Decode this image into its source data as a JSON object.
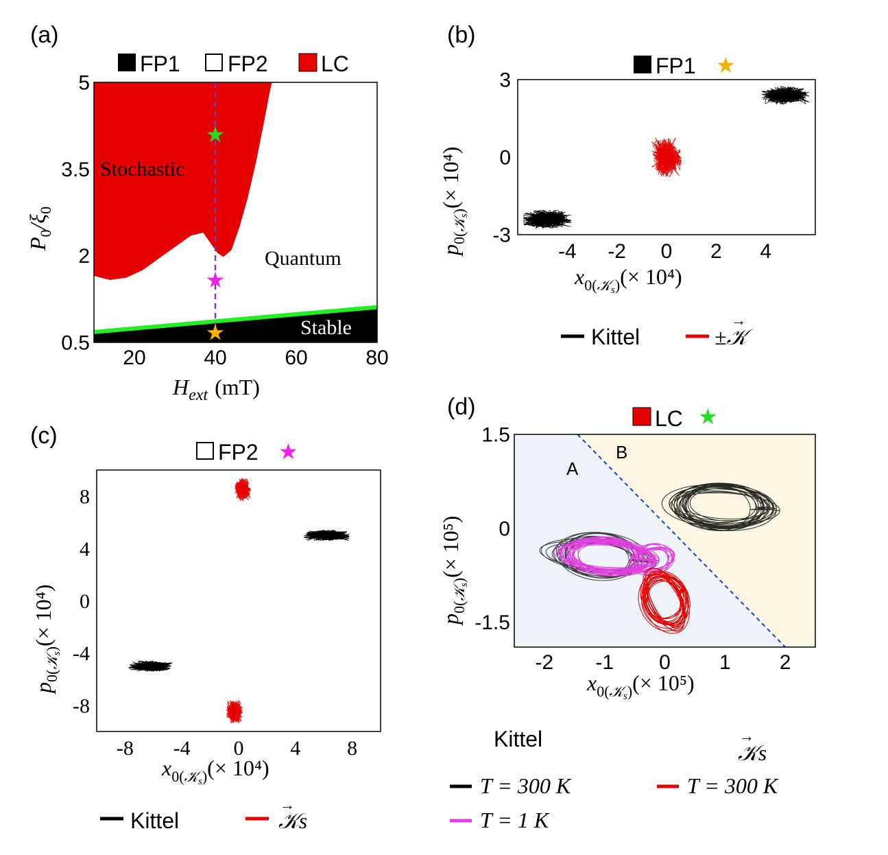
{
  "figure": {
    "colors": {
      "fp1": "#000000",
      "lc": "#e60000",
      "stable_line": "#22ee22",
      "green_star": "#22dd22",
      "magenta_star": "#ee22ee",
      "orange_star": "#f5b000",
      "magenta": "#e040e0",
      "dashed": "#7a3ab0",
      "region_a": "#eef3fa",
      "region_b": "#fbf5e3",
      "divider": "#1a3fd0"
    }
  },
  "chart_data": [
    {
      "id": "a",
      "panel_label": "(a)",
      "type": "area",
      "title": "",
      "legend": [
        {
          "label": "FP1",
          "color": "#000000",
          "filled": true
        },
        {
          "label": "FP2",
          "color": "#ffffff",
          "filled": false
        },
        {
          "label": "LC",
          "color": "#e60000",
          "filled": true
        }
      ],
      "xlabel_main": "H",
      "xlabel_sub": "ext",
      "xlabel_unit": "(mT)",
      "ylabel_main": "P",
      "ylabel_sub": "0",
      "ylabel_slash": "/ξ",
      "ylabel_sub2": "0",
      "xlim": [
        10,
        80
      ],
      "ylim": [
        0.5,
        5
      ],
      "xticks": [
        "20",
        "40",
        "60",
        "80"
      ],
      "xtick_values": [
        20,
        40,
        60,
        80
      ],
      "yticks": [
        "0.5",
        "2",
        "3.5",
        "5"
      ],
      "ytick_values": [
        0.5,
        2,
        3.5,
        5
      ],
      "region_labels": {
        "stochastic": "Stochastic",
        "quantum": "Quantum",
        "stable": "Stable"
      },
      "lc_boundary": [
        [
          10,
          1.65
        ],
        [
          14,
          1.58
        ],
        [
          18,
          1.62
        ],
        [
          22,
          1.75
        ],
        [
          26,
          1.95
        ],
        [
          30,
          2.15
        ],
        [
          34,
          2.35
        ],
        [
          37,
          2.4
        ],
        [
          39,
          2.2
        ],
        [
          40.5,
          2.05
        ],
        [
          42,
          1.98
        ],
        [
          44,
          2.1
        ],
        [
          46,
          2.5
        ],
        [
          48,
          3.0
        ],
        [
          50,
          3.6
        ],
        [
          52,
          4.3
        ],
        [
          53.5,
          4.85
        ],
        [
          54,
          5
        ]
      ],
      "stable_line": [
        [
          10,
          0.68
        ],
        [
          80,
          1.11
        ]
      ],
      "dashed_x": 40,
      "stars": [
        {
          "x": 40,
          "y": 4.1,
          "color": "#22dd22"
        },
        {
          "x": 40,
          "y": 1.58,
          "color": "#ee22ee"
        },
        {
          "x": 40,
          "y": 0.67,
          "color": "#f5b000"
        }
      ]
    },
    {
      "id": "b",
      "panel_label": "(b)",
      "type": "scatter",
      "legend_top": [
        {
          "label": "FP1",
          "color": "#000000",
          "star": "#f5b000"
        }
      ],
      "xlabel_main": "x",
      "xlabel_sub": "0(",
      "xlabel_ks": "𝒦",
      "xlabel_ks_sub": "s",
      "xlabel_tail": ")",
      "xlabel_unit": "(× 10⁴)",
      "ylabel_main": "p",
      "ylabel_sub": "0(",
      "ylabel_ks": "𝒦",
      "ylabel_ks_sub": "s",
      "ylabel_tail": ")",
      "ylabel_unit": "(× 10⁴)",
      "xlim": [
        -6,
        6
      ],
      "ylim": [
        -3,
        3
      ],
      "xticks": [
        "-4",
        "-2",
        "0",
        "2",
        "4"
      ],
      "xtick_values": [
        -4,
        -2,
        0,
        2,
        4
      ],
      "yticks": [
        "-3",
        "0",
        "3"
      ],
      "ytick_values": [
        -3,
        0,
        3
      ],
      "series": [
        {
          "name": "Kittel",
          "color": "#000000",
          "clusters": [
            [
              4.8,
              2.4,
              0.95,
              0.35
            ],
            [
              -4.8,
              -2.4,
              0.95,
              0.35
            ]
          ]
        },
        {
          "name": "±𝒦",
          "color": "#e60000",
          "clusters": [
            [
              0.0,
              0.0,
              0.6,
              0.75
            ]
          ]
        }
      ],
      "legend_bottom": [
        {
          "label": "Kittel",
          "color": "#000000"
        },
        {
          "label": "±𝒦",
          "color": "#e60000"
        }
      ]
    },
    {
      "id": "c",
      "panel_label": "(c)",
      "type": "scatter",
      "legend_top": [
        {
          "label": "FP2",
          "color": "#ffffff",
          "star": "#ee22ee"
        }
      ],
      "xlabel_main": "x",
      "xlabel_sub": "0(",
      "xlabel_ks": "𝒦",
      "xlabel_ks_sub": "s",
      "xlabel_tail": ")",
      "xlabel_unit": "(× 10⁴)",
      "ylabel_main": "p",
      "ylabel_sub": "0(",
      "ylabel_ks": "𝒦",
      "ylabel_ks_sub": "s",
      "ylabel_tail": ")",
      "ylabel_unit": "(× 10⁴)",
      "xlim": [
        -10,
        10
      ],
      "ylim": [
        -10,
        10
      ],
      "xticks": [
        "-8",
        "-4",
        "0",
        "4",
        "8"
      ],
      "xtick_values": [
        -8,
        -4,
        0,
        4,
        8
      ],
      "yticks": [
        "-8",
        "-4",
        "0",
        "4",
        "8"
      ],
      "ytick_values": [
        -8,
        -4,
        0,
        4,
        8
      ],
      "series": [
        {
          "name": "Kittel",
          "color": "#000000",
          "clusters": [
            [
              6.2,
              5.0,
              1.6,
              0.4
            ],
            [
              -6.2,
              -5.0,
              1.6,
              0.4
            ]
          ]
        },
        {
          "name": "𝒦s",
          "color": "#e60000",
          "clusters": [
            [
              0.3,
              8.5,
              0.55,
              0.85
            ],
            [
              -0.3,
              -8.5,
              0.55,
              0.85
            ]
          ]
        }
      ],
      "legend_bottom": [
        {
          "label": "Kittel",
          "color": "#000000"
        },
        {
          "label": "𝒦s",
          "color": "#e60000"
        }
      ]
    },
    {
      "id": "d",
      "panel_label": "(d)",
      "type": "line",
      "legend_top": [
        {
          "label": "LC",
          "color": "#e60000",
          "star": "#22dd22"
        }
      ],
      "xlabel_main": "x",
      "xlabel_sub": "0(",
      "xlabel_ks": "𝒦",
      "xlabel_ks_sub": "s",
      "xlabel_tail": ")",
      "xlabel_unit": "(× 10⁵)",
      "ylabel_main": "p",
      "ylabel_sub": "0(",
      "ylabel_ks": "𝒦",
      "ylabel_ks_sub": "s",
      "ylabel_tail": ")",
      "ylabel_unit": "(× 10⁵)",
      "xlim": [
        -2.5,
        2.5
      ],
      "ylim": [
        -1.9,
        1.5
      ],
      "xticks": [
        "-2",
        "-1",
        "0",
        "1",
        "2"
      ],
      "xtick_values": [
        -2,
        -1,
        0,
        1,
        2
      ],
      "yticks": [
        "1.5",
        "0",
        "-1.5"
      ],
      "ytick_values": [
        1.5,
        0,
        -1.5
      ],
      "region_labels": {
        "a": "A",
        "b": "B"
      },
      "divider": [
        [
          -1.45,
          1.5
        ],
        [
          2.0,
          -1.9
        ]
      ],
      "series": [
        {
          "name": "Kittel T = 300 K",
          "color": "#222222",
          "attractor": "right_and_left"
        },
        {
          "name": "Kittel T = 1 K",
          "color": "#e040e0",
          "attractor": "left"
        },
        {
          "name": "𝒦s T = 300 K",
          "color": "#e60000",
          "attractor": "lower"
        }
      ],
      "legend_bottom": {
        "kittel_header": "Kittel",
        "ks_header": "𝒦s",
        "entries": [
          {
            "label": "T = 300 K",
            "color": "#000000"
          },
          {
            "label": "T = 300 K",
            "color": "#e60000"
          },
          {
            "label": "T = 1 K",
            "color": "#e040e0"
          }
        ]
      }
    }
  ]
}
